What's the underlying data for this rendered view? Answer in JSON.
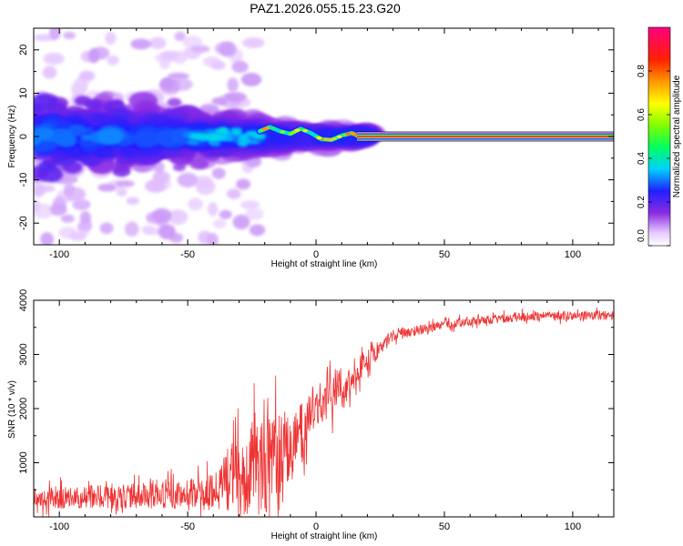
{
  "title": "PAZ1.2026.055.15.23.G20",
  "chart_data": [
    {
      "type": "heatmap",
      "title": "PAZ1.2026.055.15.23.G20",
      "xlabel": "Height of straight line (km)",
      "ylabel": "Frequency (Hz)",
      "xlim": [
        -110,
        116
      ],
      "ylim": [
        -25,
        25
      ],
      "xticks": [
        -100,
        -50,
        0,
        50,
        100
      ],
      "yticks": [
        -20,
        -10,
        0,
        10,
        20
      ],
      "xtick_labels": [
        "-100",
        "-50",
        "0",
        "50",
        "100"
      ],
      "ytick_labels": [
        "-20",
        "-10",
        "0",
        "10",
        "20"
      ],
      "carrier_line": {
        "frequency": 0,
        "start_height": 16,
        "end_height": 116,
        "amplitude": 0.95
      },
      "ridge": [
        {
          "x": -22,
          "y": 1.2
        },
        {
          "x": -18,
          "y": 2.2
        },
        {
          "x": -14,
          "y": 1.2
        },
        {
          "x": -10,
          "y": 0.6
        },
        {
          "x": -6,
          "y": 1.8
        },
        {
          "x": -2,
          "y": 0.8
        },
        {
          "x": 2,
          "y": -0.6
        },
        {
          "x": 6,
          "y": -0.8
        },
        {
          "x": 10,
          "y": 0.2
        },
        {
          "x": 14,
          "y": 0.8
        },
        {
          "x": 16,
          "y": 0.2
        }
      ],
      "colorbar": {
        "label": "Normalized spectral amplitude",
        "range": [
          0,
          1
        ],
        "ticks": [
          0.0,
          0.2,
          0.4,
          0.6,
          0.8
        ],
        "tick_labels": [
          "0.0",
          "0.2",
          "0.4",
          "0.6",
          "0.8"
        ]
      },
      "grid": false
    },
    {
      "type": "line",
      "xlabel": "Height of straight line (km)",
      "ylabel": "SNR (10 * v/v)",
      "xlim": [
        -110,
        116
      ],
      "ylim": [
        0,
        4000
      ],
      "xticks": [
        -100,
        -50,
        0,
        50,
        100
      ],
      "yticks": [
        1000,
        2000,
        3000,
        4000
      ],
      "xtick_labels": [
        "-100",
        "-50",
        "0",
        "50",
        "100"
      ],
      "ytick_labels": [
        "1000",
        "2000",
        "3000",
        "4000"
      ],
      "series": [
        {
          "name": "SNR",
          "color": "#ee3333",
          "envelope": [
            {
              "x": -110,
              "mean": 350,
              "spread": 300
            },
            {
              "x": -90,
              "mean": 360,
              "spread": 300
            },
            {
              "x": -70,
              "mean": 400,
              "spread": 350
            },
            {
              "x": -50,
              "mean": 450,
              "spread": 450
            },
            {
              "x": -40,
              "mean": 550,
              "spread": 650
            },
            {
              "x": -30,
              "mean": 800,
              "spread": 1000
            },
            {
              "x": -20,
              "mean": 1000,
              "spread": 1500
            },
            {
              "x": -10,
              "mean": 1200,
              "spread": 900
            },
            {
              "x": -5,
              "mean": 1600,
              "spread": 800
            },
            {
              "x": 0,
              "mean": 2100,
              "spread": 700
            },
            {
              "x": 10,
              "mean": 2400,
              "spread": 600
            },
            {
              "x": 20,
              "mean": 2900,
              "spread": 300
            },
            {
              "x": 30,
              "mean": 3350,
              "spread": 150
            },
            {
              "x": 50,
              "mean": 3550,
              "spread": 120
            },
            {
              "x": 80,
              "mean": 3700,
              "spread": 120
            },
            {
              "x": 116,
              "mean": 3720,
              "spread": 120
            }
          ]
        }
      ],
      "grid": false
    }
  ]
}
